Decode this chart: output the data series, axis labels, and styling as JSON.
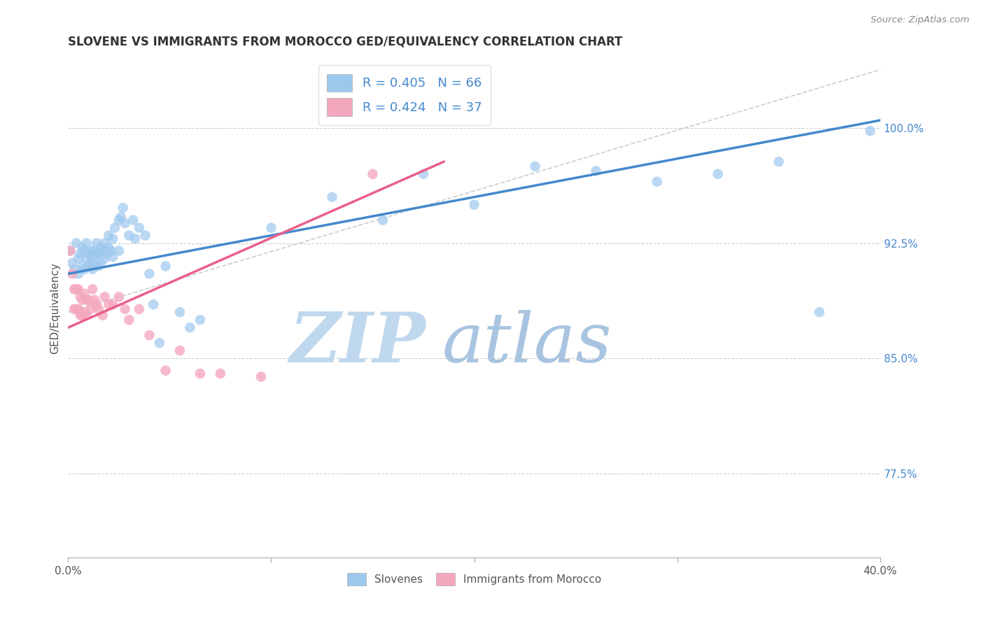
{
  "title": "SLOVENE VS IMMIGRANTS FROM MOROCCO GED/EQUIVALENCY CORRELATION CHART",
  "source": "Source: ZipAtlas.com",
  "ylabel": "GED/Equivalency",
  "ytick_labels": [
    "77.5%",
    "85.0%",
    "92.5%",
    "100.0%"
  ],
  "ytick_values": [
    0.775,
    0.85,
    0.925,
    1.0
  ],
  "xlim": [
    0.0,
    0.4
  ],
  "ylim": [
    0.72,
    1.045
  ],
  "blue_R": 0.405,
  "blue_N": 66,
  "pink_R": 0.424,
  "pink_N": 37,
  "blue_color": "#9DC8EE",
  "pink_color": "#F4A8BE",
  "blue_line_color": "#4488CC",
  "pink_line_color": "#E8608A",
  "dashed_line_color": "#CCCCCC",
  "legend_text_color": "#4488CC",
  "watermark_color_zip": "#C8DCF0",
  "watermark_color_atlas": "#B0C8E8",
  "blue_scatter_x": [
    0.001,
    0.002,
    0.003,
    0.004,
    0.005,
    0.005,
    0.006,
    0.007,
    0.007,
    0.008,
    0.008,
    0.009,
    0.009,
    0.01,
    0.01,
    0.011,
    0.011,
    0.012,
    0.012,
    0.013,
    0.013,
    0.014,
    0.014,
    0.015,
    0.015,
    0.016,
    0.016,
    0.017,
    0.018,
    0.018,
    0.019,
    0.02,
    0.02,
    0.021,
    0.022,
    0.022,
    0.023,
    0.025,
    0.025,
    0.026,
    0.027,
    0.028,
    0.03,
    0.032,
    0.033,
    0.035,
    0.038,
    0.04,
    0.042,
    0.045,
    0.048,
    0.055,
    0.06,
    0.065,
    0.1,
    0.13,
    0.155,
    0.175,
    0.2,
    0.23,
    0.26,
    0.29,
    0.32,
    0.35,
    0.37,
    0.395
  ],
  "blue_scatter_y": [
    0.92,
    0.912,
    0.908,
    0.925,
    0.915,
    0.905,
    0.918,
    0.91,
    0.922,
    0.908,
    0.92,
    0.915,
    0.925,
    0.91,
    0.918,
    0.912,
    0.92,
    0.908,
    0.916,
    0.912,
    0.92,
    0.918,
    0.925,
    0.91,
    0.918,
    0.912,
    0.922,
    0.92,
    0.915,
    0.925,
    0.918,
    0.922,
    0.93,
    0.92,
    0.928,
    0.916,
    0.935,
    0.94,
    0.92,
    0.942,
    0.948,
    0.938,
    0.93,
    0.94,
    0.928,
    0.935,
    0.93,
    0.905,
    0.885,
    0.86,
    0.91,
    0.88,
    0.87,
    0.875,
    0.935,
    0.955,
    0.94,
    0.97,
    0.95,
    0.975,
    0.972,
    0.965,
    0.97,
    0.978,
    0.88,
    0.998
  ],
  "pink_scatter_x": [
    0.001,
    0.002,
    0.003,
    0.003,
    0.004,
    0.004,
    0.005,
    0.005,
    0.006,
    0.006,
    0.007,
    0.007,
    0.008,
    0.008,
    0.009,
    0.009,
    0.01,
    0.011,
    0.012,
    0.013,
    0.014,
    0.015,
    0.017,
    0.018,
    0.02,
    0.022,
    0.025,
    0.028,
    0.03,
    0.035,
    0.04,
    0.048,
    0.055,
    0.065,
    0.075,
    0.095,
    0.15
  ],
  "pink_scatter_y": [
    0.92,
    0.905,
    0.895,
    0.882,
    0.895,
    0.882,
    0.895,
    0.882,
    0.89,
    0.878,
    0.888,
    0.878,
    0.892,
    0.88,
    0.888,
    0.878,
    0.888,
    0.882,
    0.895,
    0.888,
    0.885,
    0.882,
    0.878,
    0.89,
    0.885,
    0.885,
    0.89,
    0.882,
    0.875,
    0.882,
    0.865,
    0.842,
    0.855,
    0.84,
    0.84,
    0.838,
    0.97
  ],
  "blue_trendline_x": [
    0.0,
    0.4
  ],
  "blue_trendline_y": [
    0.905,
    1.005
  ],
  "pink_trendline_x": [
    0.0,
    0.185
  ],
  "pink_trendline_y": [
    0.87,
    0.978
  ],
  "dashed_line_x": [
    0.0,
    0.4
  ],
  "dashed_line_y": [
    0.88,
    1.038
  ]
}
